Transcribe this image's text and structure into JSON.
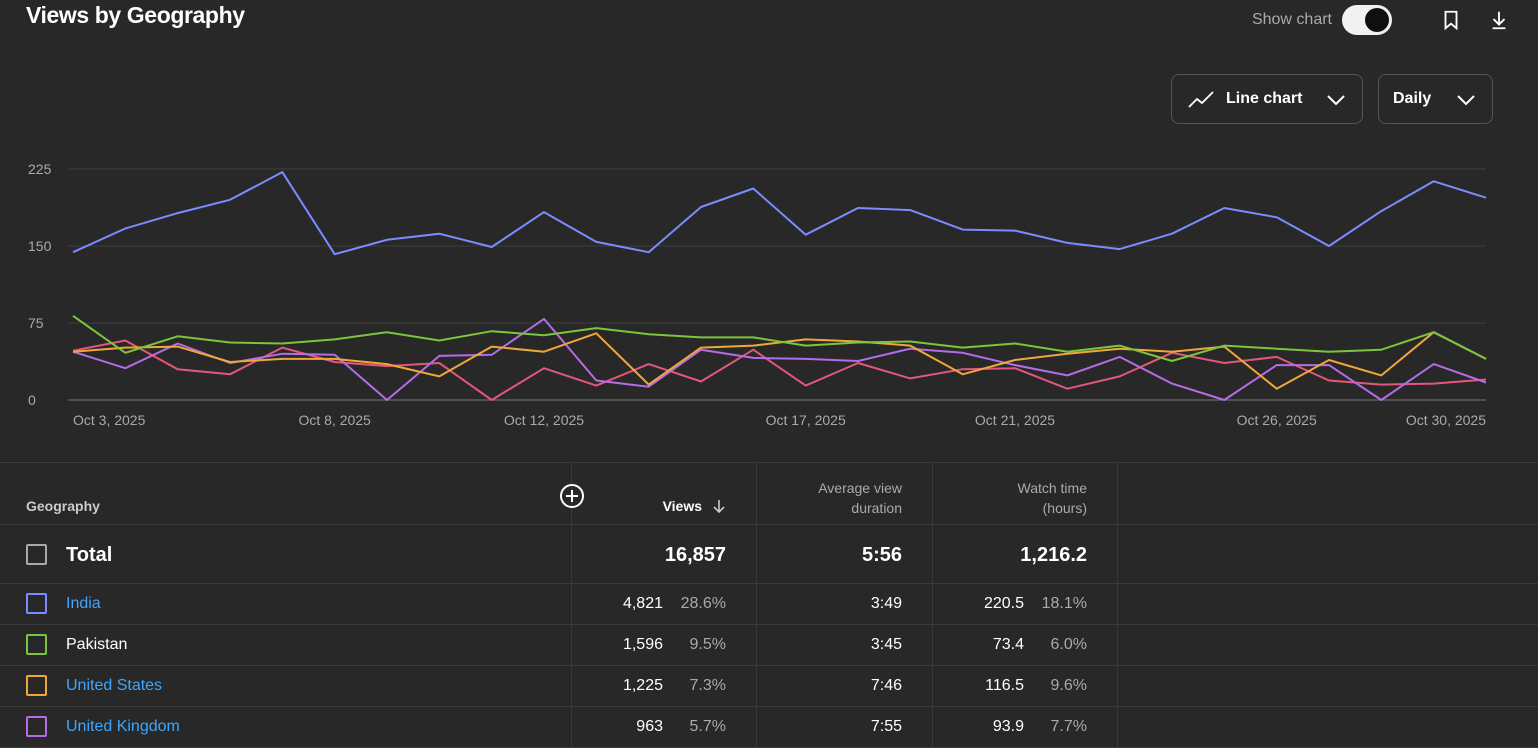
{
  "title": "Views by Geography",
  "controls": {
    "show_chart_label": "Show chart",
    "show_chart_on": true,
    "chart_type": "Line chart",
    "interval": "Daily"
  },
  "chart_data": {
    "type": "line",
    "ylim": [
      0,
      225
    ],
    "y_ticks": [
      "0",
      "75",
      "150",
      "225"
    ],
    "x_tick_labels": [
      {
        "day": 0,
        "label": "Oct 3, 2025"
      },
      {
        "day": 5,
        "label": "Oct 8, 2025"
      },
      {
        "day": 9,
        "label": "Oct 12, 2025"
      },
      {
        "day": 14,
        "label": "Oct 17, 2025"
      },
      {
        "day": 18,
        "label": "Oct 21, 2025"
      },
      {
        "day": 23,
        "label": "Oct 26, 2025"
      },
      {
        "day": 27,
        "label": "Oct 30, 2025"
      }
    ],
    "x_start_label": "Oct 3, 2025",
    "x_end_label": "Oct 30, 2025",
    "grid": true,
    "series": [
      {
        "name": "India",
        "color": "#7b8cff",
        "values": [
          144,
          167,
          182,
          195,
          222,
          142,
          156,
          162,
          149,
          183,
          154,
          144,
          188,
          206,
          161,
          187,
          185,
          166,
          165,
          153,
          147,
          162,
          187,
          178,
          150,
          184,
          213,
          197
        ]
      },
      {
        "name": "Pakistan",
        "color": "#7cc53c",
        "values": [
          82,
          46,
          62,
          56,
          55,
          59,
          66,
          58,
          67,
          63,
          70,
          64,
          61,
          61,
          53,
          56,
          57,
          51,
          55,
          47,
          53,
          38,
          53,
          50,
          47,
          49,
          66,
          40
        ]
      },
      {
        "name": "United States",
        "color": "#f0a73a",
        "values": [
          47,
          51,
          52,
          37,
          40,
          40,
          35,
          23,
          52,
          47,
          65,
          15,
          51,
          53,
          59,
          57,
          53,
          25,
          39,
          45,
          50,
          47,
          52,
          11,
          39,
          24,
          66,
          40
        ]
      },
      {
        "name": "United Kingdom",
        "color": "#b56ce8",
        "values": [
          47,
          31,
          55,
          36,
          45,
          44,
          0,
          43,
          44,
          79,
          19,
          13,
          49,
          41,
          40,
          38,
          50,
          46,
          34,
          24,
          42,
          16,
          0,
          34,
          34,
          0,
          35,
          17
        ]
      },
      {
        "name": "",
        "color": "#e3577a",
        "values": [
          48,
          58,
          30,
          25,
          51,
          37,
          33,
          36,
          0,
          31,
          14,
          35,
          18,
          49,
          14,
          36,
          21,
          30,
          31,
          11,
          23,
          46,
          36,
          42,
          19,
          15,
          16,
          20
        ]
      }
    ]
  },
  "table": {
    "headers": {
      "geography": "Geography",
      "views": "Views",
      "avd_line1": "Average view",
      "avd_line2": "duration",
      "wt_line1": "Watch time",
      "wt_line2": "(hours)"
    },
    "total": {
      "label": "Total",
      "views": "16,857",
      "avd": "5:56",
      "watch_time": "1,216.2"
    },
    "rows": [
      {
        "name": "India",
        "color": "#7b8cff",
        "is_link": true,
        "views": "4,821",
        "views_pct": "28.6%",
        "avd": "3:49",
        "watch_time": "220.5",
        "watch_pct": "18.1%"
      },
      {
        "name": "Pakistan",
        "color": "#7cc53c",
        "is_link": false,
        "views": "1,596",
        "views_pct": "9.5%",
        "avd": "3:45",
        "watch_time": "73.4",
        "watch_pct": "6.0%"
      },
      {
        "name": "United States",
        "color": "#f0a73a",
        "is_link": true,
        "views": "1,225",
        "views_pct": "7.3%",
        "avd": "7:46",
        "watch_time": "116.5",
        "watch_pct": "9.6%"
      },
      {
        "name": "United Kingdom",
        "color": "#b56ce8",
        "is_link": true,
        "views": "963",
        "views_pct": "5.7%",
        "avd": "7:55",
        "watch_time": "93.9",
        "watch_pct": "7.7%"
      }
    ]
  }
}
